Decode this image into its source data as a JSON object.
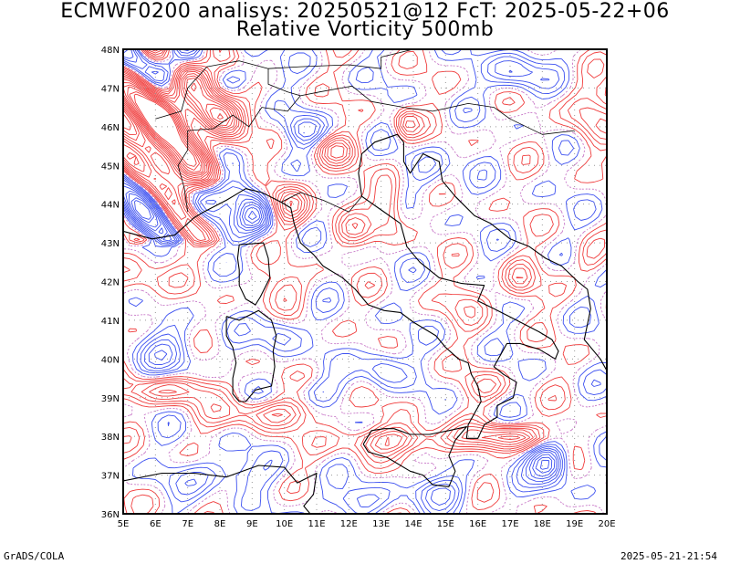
{
  "title_line1": "ECMWF0200 analisys: 20250521@12 FcT: 2025-05-22+06",
  "title_line2": "Relative Vorticity 500mb",
  "footer_left": "GrADS/COLA",
  "footer_right": "2025-05-21-21:54",
  "map": {
    "lon_range": [
      5,
      20
    ],
    "lat_range": [
      36,
      48
    ],
    "lon_labels": [
      "5E",
      "6E",
      "7E",
      "8E",
      "9E",
      "10E",
      "11E",
      "12E",
      "13E",
      "14E",
      "15E",
      "16E",
      "17E",
      "18E",
      "19E",
      "20E"
    ],
    "lat_labels": [
      "36N",
      "37N",
      "38N",
      "39N",
      "40N",
      "41N",
      "42N",
      "43N",
      "44N",
      "45N",
      "46N",
      "47N",
      "48N"
    ],
    "grid_lines": true,
    "colors": {
      "positive_vorticity": "#f03c3c",
      "negative_vorticity": "#3c50f0",
      "zero_line": "#c878c8",
      "coastline": "#000000",
      "grid": "#999999"
    }
  }
}
